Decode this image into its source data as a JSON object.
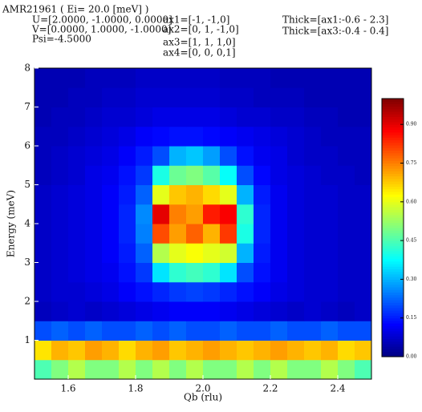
{
  "chart_data": {
    "type": "heatmap",
    "annotations": [
      "AMR21961 ( Ei= 20.0 [meV] )",
      "U=[2.0000, -1.0000, 0.0000]",
      "V=[0.0000, 1.0000, -1.0000]",
      "Psi=-4.5000",
      "ax1=[-1, -1,0]",
      "ax2=[0, 1, -1,0]",
      "ax3=[1, 1, 1,0]",
      "ax4=[0, 0, 0,1]",
      "Thick=[ax1:-0.6 - 2.3]",
      "Thick=[ax3:-0.4 - 0.4]"
    ],
    "xlabel": "Qb (rlu)",
    "ylabel": "Energy (meV)",
    "xlim": [
      1.5,
      2.5
    ],
    "ylim": [
      0,
      8
    ],
    "xticks": [
      1.6,
      1.8,
      {
        "value": 2,
        "label": "2.0"
      },
      2.2,
      2.4
    ],
    "yticks": [
      1,
      2,
      3,
      4,
      5,
      6,
      7,
      8
    ],
    "clim": [
      0,
      1.0
    ],
    "cticks": [
      {
        "value": 0,
        "label": "0.00"
      },
      0.15,
      {
        "value": 0.3,
        "label": "0.30"
      },
      0.45,
      {
        "value": 0.6,
        "label": "0.60"
      },
      0.75,
      {
        "value": 0.9,
        "label": "0.90"
      }
    ],
    "colormap": "jet",
    "z": [
      [
        0.45,
        0.5,
        0.55,
        0.5,
        0.5,
        0.55,
        0.5,
        0.55,
        0.5,
        0.55,
        0.5,
        0.5,
        0.55,
        0.5,
        0.55,
        0.5,
        0.5,
        0.55,
        0.5,
        0.45
      ],
      [
        0.65,
        0.7,
        0.68,
        0.72,
        0.7,
        0.66,
        0.7,
        0.72,
        0.68,
        0.7,
        0.72,
        0.7,
        0.68,
        0.7,
        0.72,
        0.7,
        0.68,
        0.7,
        0.66,
        0.68
      ],
      [
        0.2,
        0.22,
        0.2,
        0.22,
        0.2,
        0.2,
        0.22,
        0.2,
        0.22,
        0.2,
        0.2,
        0.22,
        0.2,
        0.2,
        0.22,
        0.2,
        0.2,
        0.22,
        0.2,
        0.2
      ],
      [
        0.06,
        0.07,
        0.08,
        0.07,
        0.08,
        0.09,
        0.1,
        0.11,
        0.12,
        0.12,
        0.12,
        0.11,
        0.1,
        0.09,
        0.08,
        0.07,
        0.08,
        0.07,
        0.06,
        0.07
      ],
      [
        0.07,
        0.08,
        0.08,
        0.09,
        0.1,
        0.12,
        0.14,
        0.16,
        0.18,
        0.19,
        0.18,
        0.16,
        0.14,
        0.12,
        0.1,
        0.09,
        0.08,
        0.08,
        0.07,
        0.07
      ],
      [
        0.07,
        0.08,
        0.09,
        0.1,
        0.11,
        0.14,
        0.18,
        0.35,
        0.42,
        0.44,
        0.42,
        0.35,
        0.2,
        0.14,
        0.11,
        0.09,
        0.08,
        0.08,
        0.07,
        0.07
      ],
      [
        0.07,
        0.08,
        0.09,
        0.1,
        0.12,
        0.15,
        0.22,
        0.55,
        0.6,
        0.62,
        0.6,
        0.58,
        0.3,
        0.15,
        0.11,
        0.09,
        0.08,
        0.08,
        0.07,
        0.07
      ],
      [
        0.07,
        0.08,
        0.09,
        0.1,
        0.12,
        0.16,
        0.25,
        0.8,
        0.72,
        0.78,
        0.7,
        0.82,
        0.4,
        0.16,
        0.11,
        0.09,
        0.08,
        0.08,
        0.07,
        0.07
      ],
      [
        0.07,
        0.08,
        0.09,
        0.1,
        0.12,
        0.16,
        0.26,
        0.9,
        0.75,
        0.72,
        0.85,
        0.88,
        0.42,
        0.16,
        0.11,
        0.09,
        0.08,
        0.08,
        0.07,
        0.07
      ],
      [
        0.07,
        0.08,
        0.09,
        0.1,
        0.12,
        0.15,
        0.22,
        0.6,
        0.68,
        0.7,
        0.66,
        0.6,
        0.3,
        0.15,
        0.11,
        0.09,
        0.08,
        0.08,
        0.07,
        0.07
      ],
      [
        0.06,
        0.07,
        0.08,
        0.1,
        0.11,
        0.14,
        0.18,
        0.4,
        0.48,
        0.5,
        0.46,
        0.38,
        0.2,
        0.13,
        0.1,
        0.09,
        0.08,
        0.07,
        0.07,
        0.06
      ],
      [
        0.06,
        0.07,
        0.08,
        0.09,
        0.1,
        0.12,
        0.15,
        0.2,
        0.3,
        0.32,
        0.28,
        0.2,
        0.14,
        0.11,
        0.1,
        0.08,
        0.07,
        0.07,
        0.06,
        0.06
      ],
      [
        0.06,
        0.06,
        0.07,
        0.08,
        0.09,
        0.1,
        0.12,
        0.13,
        0.14,
        0.14,
        0.13,
        0.12,
        0.11,
        0.1,
        0.09,
        0.08,
        0.07,
        0.06,
        0.06,
        0.06
      ],
      [
        0.05,
        0.06,
        0.06,
        0.07,
        0.08,
        0.08,
        0.09,
        0.1,
        0.1,
        0.1,
        0.1,
        0.09,
        0.08,
        0.08,
        0.07,
        0.07,
        0.06,
        0.06,
        0.05,
        0.05
      ],
      [
        0.05,
        0.05,
        0.06,
        0.06,
        0.07,
        0.07,
        0.08,
        0.08,
        0.08,
        0.08,
        0.08,
        0.07,
        0.07,
        0.06,
        0.06,
        0.06,
        0.05,
        0.05,
        0.05,
        0.05
      ],
      [
        0.05,
        0.05,
        0.05,
        0.06,
        0.06,
        0.06,
        0.07,
        0.07,
        0.07,
        0.07,
        0.07,
        0.06,
        0.06,
        0.06,
        0.05,
        0.05,
        0.05,
        0.05,
        0.05,
        0.05
      ]
    ]
  }
}
